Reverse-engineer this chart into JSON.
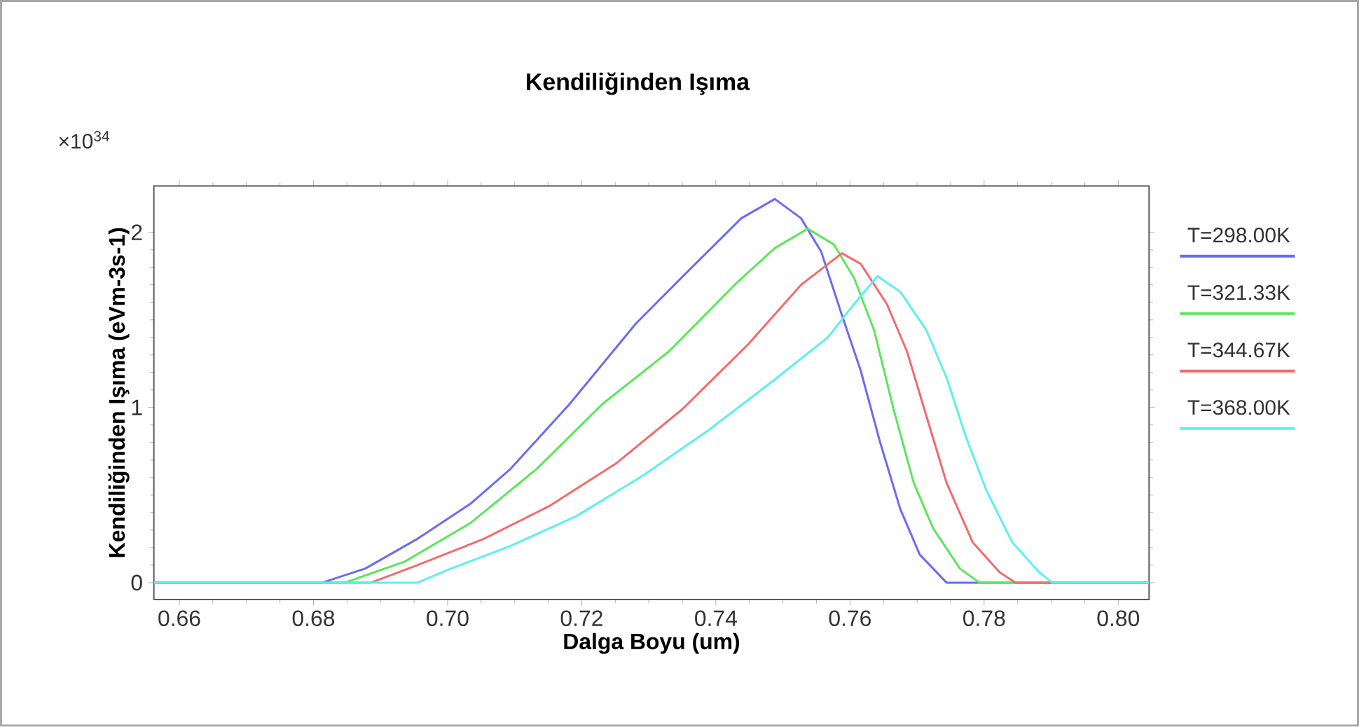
{
  "chart_data": {
    "type": "line",
    "title": "Kendiliğinden Işıma",
    "xlabel": "Dalga Boyu (um)",
    "ylabel": "Kendiliğinden Işıma (eVm-3s-1)",
    "annotations": [
      "×10$^{34}$"
    ],
    "xlim": [
      0.6562,
      0.8046
    ],
    "ylim": [
      -0.096,
      2.264
    ],
    "xticks": [
      {
        "value": 0.66,
        "label": "0.66"
      },
      {
        "value": 0.68,
        "label": "0.68"
      },
      {
        "value": 0.7,
        "label": "0.70"
      },
      {
        "value": 0.72,
        "label": "0.72"
      },
      {
        "value": 0.74,
        "label": "0.74"
      },
      {
        "value": 0.76,
        "label": "0.76"
      },
      {
        "value": 0.78,
        "label": "0.78"
      },
      {
        "value": 0.8,
        "label": "0.80"
      }
    ],
    "yticks": [
      0,
      1,
      2
    ],
    "legend": "right",
    "marker": "none",
    "line_style": "solid",
    "grid": false,
    "series": [
      {
        "name": "T=298.00K",
        "color": "#6b6bf5",
        "x": [
          0.6562,
          0.6813,
          0.6877,
          0.6955,
          0.7034,
          0.7094,
          0.7182,
          0.7281,
          0.7359,
          0.7438,
          0.7488,
          0.7527,
          0.7557,
          0.7586,
          0.7616,
          0.7645,
          0.7675,
          0.7704,
          0.7744,
          0.8046
        ],
        "values": [
          0,
          0,
          0.08,
          0.25,
          0.45,
          0.65,
          1.02,
          1.48,
          1.78,
          2.08,
          2.19,
          2.08,
          1.89,
          1.55,
          1.21,
          0.8,
          0.42,
          0.16,
          0,
          0
        ]
      },
      {
        "name": "T=321.33K",
        "color": "#5ce65c",
        "x": [
          0.6562,
          0.6847,
          0.6936,
          0.7034,
          0.7133,
          0.7231,
          0.733,
          0.7428,
          0.7488,
          0.7537,
          0.7576,
          0.7606,
          0.7636,
          0.7665,
          0.7695,
          0.7724,
          0.7764,
          0.7793,
          0.8046
        ],
        "values": [
          0,
          0,
          0.12,
          0.34,
          0.65,
          1.02,
          1.32,
          1.7,
          1.91,
          2.02,
          1.93,
          1.74,
          1.44,
          0.99,
          0.57,
          0.31,
          0.08,
          0,
          0
        ]
      },
      {
        "name": "T=344.67K",
        "color": "#f26b6b",
        "x": [
          0.6562,
          0.6886,
          0.6955,
          0.7054,
          0.7153,
          0.7251,
          0.735,
          0.7448,
          0.7527,
          0.7588,
          0.7616,
          0.7655,
          0.7685,
          0.7714,
          0.7744,
          0.7783,
          0.7823,
          0.7847,
          0.8046
        ],
        "values": [
          0,
          0,
          0.1,
          0.25,
          0.44,
          0.68,
          0.99,
          1.36,
          1.7,
          1.88,
          1.82,
          1.59,
          1.32,
          0.95,
          0.57,
          0.23,
          0.06,
          0,
          0
        ]
      },
      {
        "name": "T=368.00K",
        "color": "#5cf0f0",
        "x": [
          0.6562,
          0.6955,
          0.7005,
          0.7094,
          0.7192,
          0.7291,
          0.7389,
          0.7488,
          0.7567,
          0.7606,
          0.7641,
          0.7675,
          0.7714,
          0.7744,
          0.7773,
          0.7803,
          0.7842,
          0.7882,
          0.7902,
          0.8046
        ],
        "values": [
          0,
          0,
          0.08,
          0.21,
          0.38,
          0.61,
          0.87,
          1.16,
          1.4,
          1.59,
          1.75,
          1.66,
          1.44,
          1.17,
          0.83,
          0.53,
          0.23,
          0.06,
          0,
          0
        ]
      }
    ]
  }
}
